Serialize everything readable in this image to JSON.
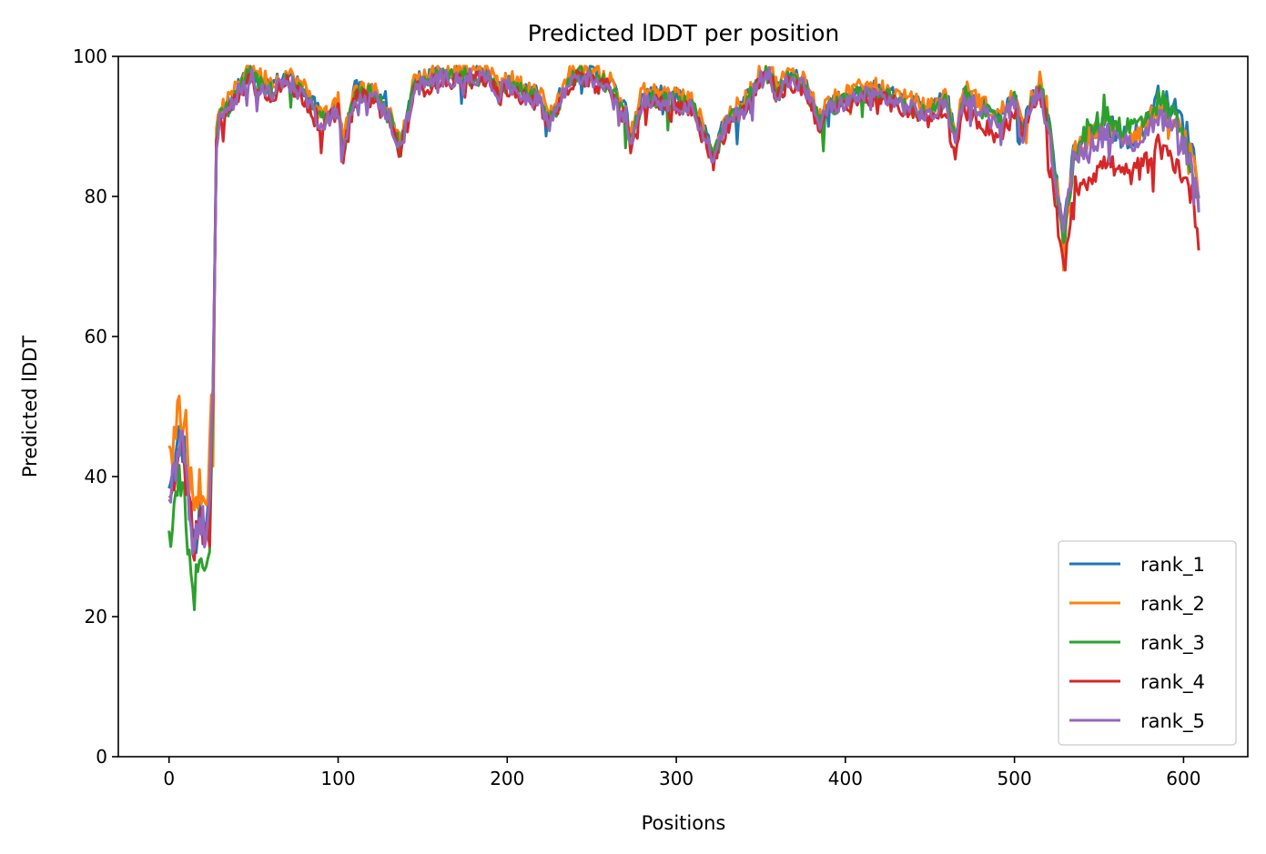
{
  "chart_data": {
    "type": "line",
    "title": "Predicted lDDT per position",
    "xlabel": "Positions",
    "ylabel": "Predicted lDDT",
    "xlim": [
      -30,
      638
    ],
    "ylim": [
      0,
      100
    ],
    "xticks": [
      0,
      100,
      200,
      300,
      400,
      500,
      600
    ],
    "yticks": [
      0,
      20,
      40,
      60,
      80,
      100
    ],
    "grid": false,
    "legend_position": "bottom-right",
    "series": [
      {
        "name": "rank_1",
        "color": "#1f77b4",
        "offset": 0.3,
        "bias": [
          [
            580,
            609,
            2
          ]
        ],
        "dips": [
          [
            336,
            87.5
          ],
          [
            390,
            90
          ],
          [
            128,
            95
          ],
          [
            120,
            96
          ]
        ]
      },
      {
        "name": "rank_2",
        "color": "#ff7f0e",
        "offset": 0.6,
        "bias": [
          [
            0,
            25,
            5
          ],
          [
            40,
            60,
            0.5
          ],
          [
            520,
            535,
            -1
          ]
        ],
        "dips": [
          [
            6,
            51.5
          ],
          [
            10,
            49.5
          ],
          [
            18,
            41
          ],
          [
            26,
            41.5
          ],
          [
            529,
            69.5
          ]
        ]
      },
      {
        "name": "rank_3",
        "color": "#2ca02c",
        "offset": -0.4,
        "bias": [
          [
            0,
            25,
            -6
          ],
          [
            540,
            600,
            2
          ]
        ],
        "dips": [
          [
            1,
            30
          ],
          [
            20,
            27
          ],
          [
            387,
            86.5
          ],
          [
            553,
            94.5
          ],
          [
            588,
            95
          ]
        ]
      },
      {
        "name": "rank_4",
        "color": "#d62728",
        "offset": -1.0,
        "bias": [
          [
            0,
            25,
            1
          ],
          [
            520,
            609,
            -4
          ],
          [
            460,
            500,
            -1.5
          ]
        ],
        "dips": [
          [
            529,
            70.5
          ],
          [
            5,
            42
          ],
          [
            24,
            30
          ]
        ]
      },
      {
        "name": "rank_5",
        "color": "#9467bd",
        "offset": -0.6,
        "bias": [
          [
            0,
            25,
            1.5
          ]
        ],
        "dips": [
          [
            102,
            85
          ],
          [
            322,
            85
          ],
          [
            8,
            46.5
          ],
          [
            14,
            29
          ]
        ]
      }
    ],
    "base_profile": [
      [
        0,
        37
      ],
      [
        3,
        40
      ],
      [
        6,
        45
      ],
      [
        9,
        43
      ],
      [
        12,
        35
      ],
      [
        15,
        30
      ],
      [
        18,
        33
      ],
      [
        21,
        31
      ],
      [
        24,
        36
      ],
      [
        26,
        52
      ],
      [
        28,
        88
      ],
      [
        30,
        92
      ],
      [
        35,
        93
      ],
      [
        40,
        95
      ],
      [
        48,
        98
      ],
      [
        55,
        96
      ],
      [
        60,
        95.5
      ],
      [
        70,
        97
      ],
      [
        80,
        95
      ],
      [
        90,
        91
      ],
      [
        100,
        93
      ],
      [
        103,
        87
      ],
      [
        110,
        95
      ],
      [
        120,
        95
      ],
      [
        130,
        92
      ],
      [
        137,
        87
      ],
      [
        145,
        96
      ],
      [
        160,
        97.5
      ],
      [
        170,
        97.5
      ],
      [
        190,
        97.5
      ],
      [
        195,
        95
      ],
      [
        200,
        96.5
      ],
      [
        210,
        95
      ],
      [
        220,
        94
      ],
      [
        225,
        91
      ],
      [
        235,
        96
      ],
      [
        240,
        98
      ],
      [
        260,
        96.5
      ],
      [
        270,
        92
      ],
      [
        273,
        88
      ],
      [
        280,
        94.5
      ],
      [
        300,
        94
      ],
      [
        310,
        93
      ],
      [
        322,
        86
      ],
      [
        330,
        91
      ],
      [
        340,
        93
      ],
      [
        350,
        97.5
      ],
      [
        355,
        98
      ],
      [
        360,
        95
      ],
      [
        365,
        97
      ],
      [
        375,
        96.5
      ],
      [
        385,
        91
      ],
      [
        390,
        93
      ],
      [
        400,
        94
      ],
      [
        410,
        95
      ],
      [
        420,
        95
      ],
      [
        430,
        94
      ],
      [
        440,
        93
      ],
      [
        450,
        92
      ],
      [
        460,
        94
      ],
      [
        465,
        88
      ],
      [
        470,
        95
      ],
      [
        480,
        93
      ],
      [
        490,
        91
      ],
      [
        500,
        94
      ],
      [
        505,
        89
      ],
      [
        510,
        94
      ],
      [
        515,
        96
      ],
      [
        520,
        91
      ],
      [
        525,
        82
      ],
      [
        529,
        74
      ],
      [
        535,
        86
      ],
      [
        545,
        88
      ],
      [
        555,
        90
      ],
      [
        565,
        88
      ],
      [
        575,
        89
      ],
      [
        585,
        92
      ],
      [
        595,
        90
      ],
      [
        600,
        88
      ],
      [
        605,
        85
      ],
      [
        609,
        79
      ]
    ]
  }
}
